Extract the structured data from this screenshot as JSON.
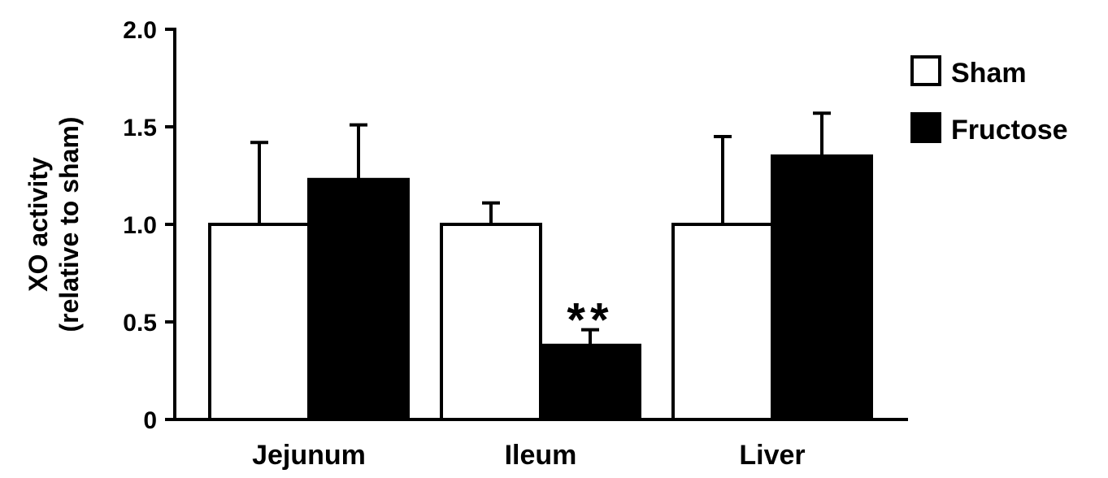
{
  "chart_data": {
    "type": "bar",
    "title": "",
    "xlabel": "",
    "ylabel_lines": [
      "XO activity",
      "(relative to sham)"
    ],
    "categories": [
      "Jejunum",
      "Ileum",
      "Liver"
    ],
    "ylim": [
      0,
      2.0
    ],
    "yticks": [
      {
        "value": 0,
        "label": "0"
      },
      {
        "value": 0.5,
        "label": "0.5"
      },
      {
        "value": 1.0,
        "label": "1.0"
      },
      {
        "value": 1.5,
        "label": "1.5"
      },
      {
        "value": 2.0,
        "label": "2.0"
      }
    ],
    "series": [
      {
        "name": "Sham",
        "color": "#ffffff",
        "values": [
          1.0,
          1.0,
          1.0
        ],
        "errors": [
          0.42,
          0.11,
          0.45
        ]
      },
      {
        "name": "Fructose",
        "color": "#000000",
        "values": [
          1.23,
          0.38,
          1.35
        ],
        "errors": [
          0.28,
          0.08,
          0.22
        ]
      }
    ],
    "annotations": [
      {
        "category": "Ileum",
        "series": "Fructose",
        "text": "**"
      }
    ],
    "legend_position": "top-right",
    "grid": false
  }
}
